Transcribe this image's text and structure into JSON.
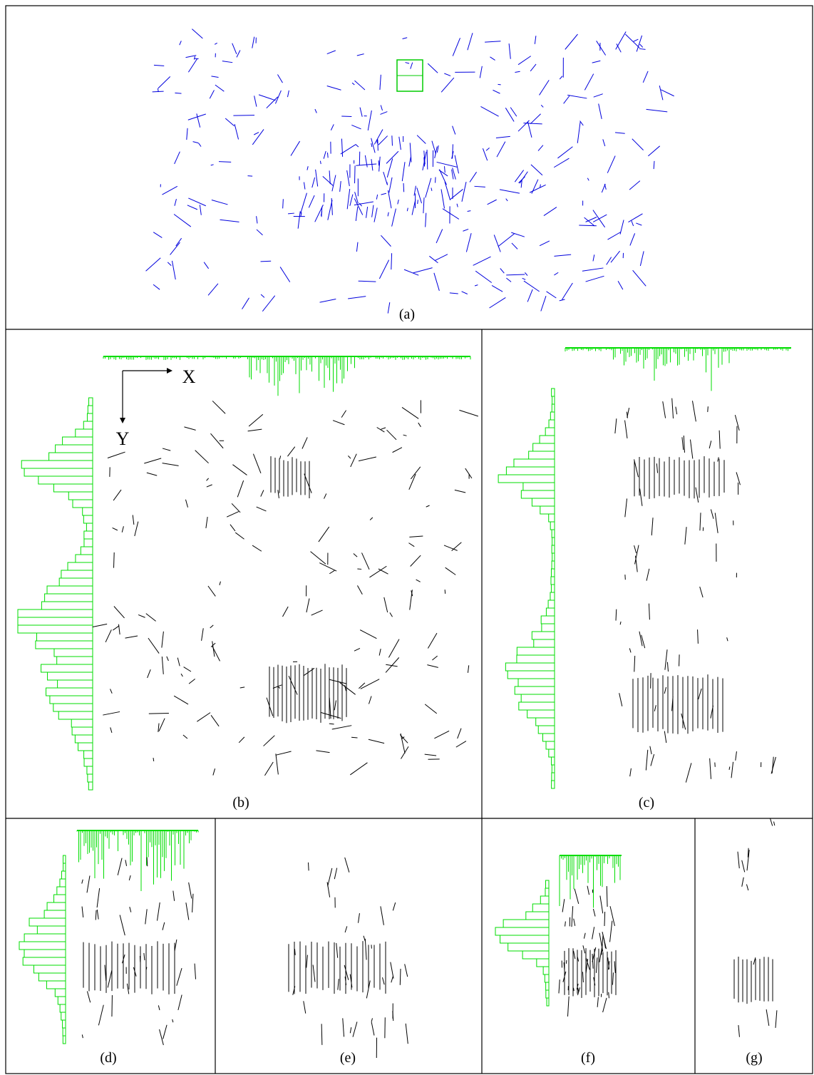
{
  "panels": [
    {
      "caption": "(a)"
    },
    {
      "caption": "(b)"
    },
    {
      "caption": "(c)"
    },
    {
      "caption": "(d)"
    },
    {
      "caption": "(e)"
    },
    {
      "caption": "(f)"
    },
    {
      "caption": "(g)"
    }
  ],
  "axes": {
    "x": "X",
    "y": "Y"
  }
}
